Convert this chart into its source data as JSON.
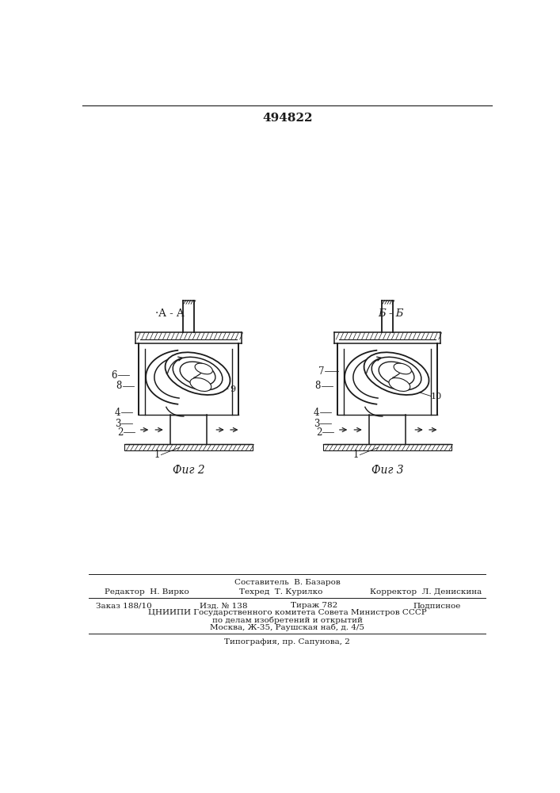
{
  "patent_number": "494822",
  "fig2_label": "Фиг 2",
  "fig3_label": "Фиг 3",
  "fig2_section": "·A - A",
  "fig3_section": "Б - Б",
  "footer_composer": "Составитель  В. Базаров",
  "footer_editor": "Редактор  Н. Вирко",
  "footer_tech": "Техред  Т. Курилко",
  "footer_corrector": "Корректор  Л. Денискина",
  "footer_order": "Заказ 188/10",
  "footer_izd": "Изд. № 138",
  "footer_tirazh": "Тираж 782",
  "footer_podpisnoe": "Подписное",
  "footer_tsniipi": "ЦНИИПИ Государственного комитета Совета Министров СССР",
  "footer_po_delam": "по делам изобретений и открытий",
  "footer_moscow": "Москва, Ж-35, Раушская наб, д. 4/5",
  "footer_tipografia": "Типография, пр. Сапунова, 2",
  "bg_color": "#ffffff",
  "line_color": "#1a1a1a"
}
